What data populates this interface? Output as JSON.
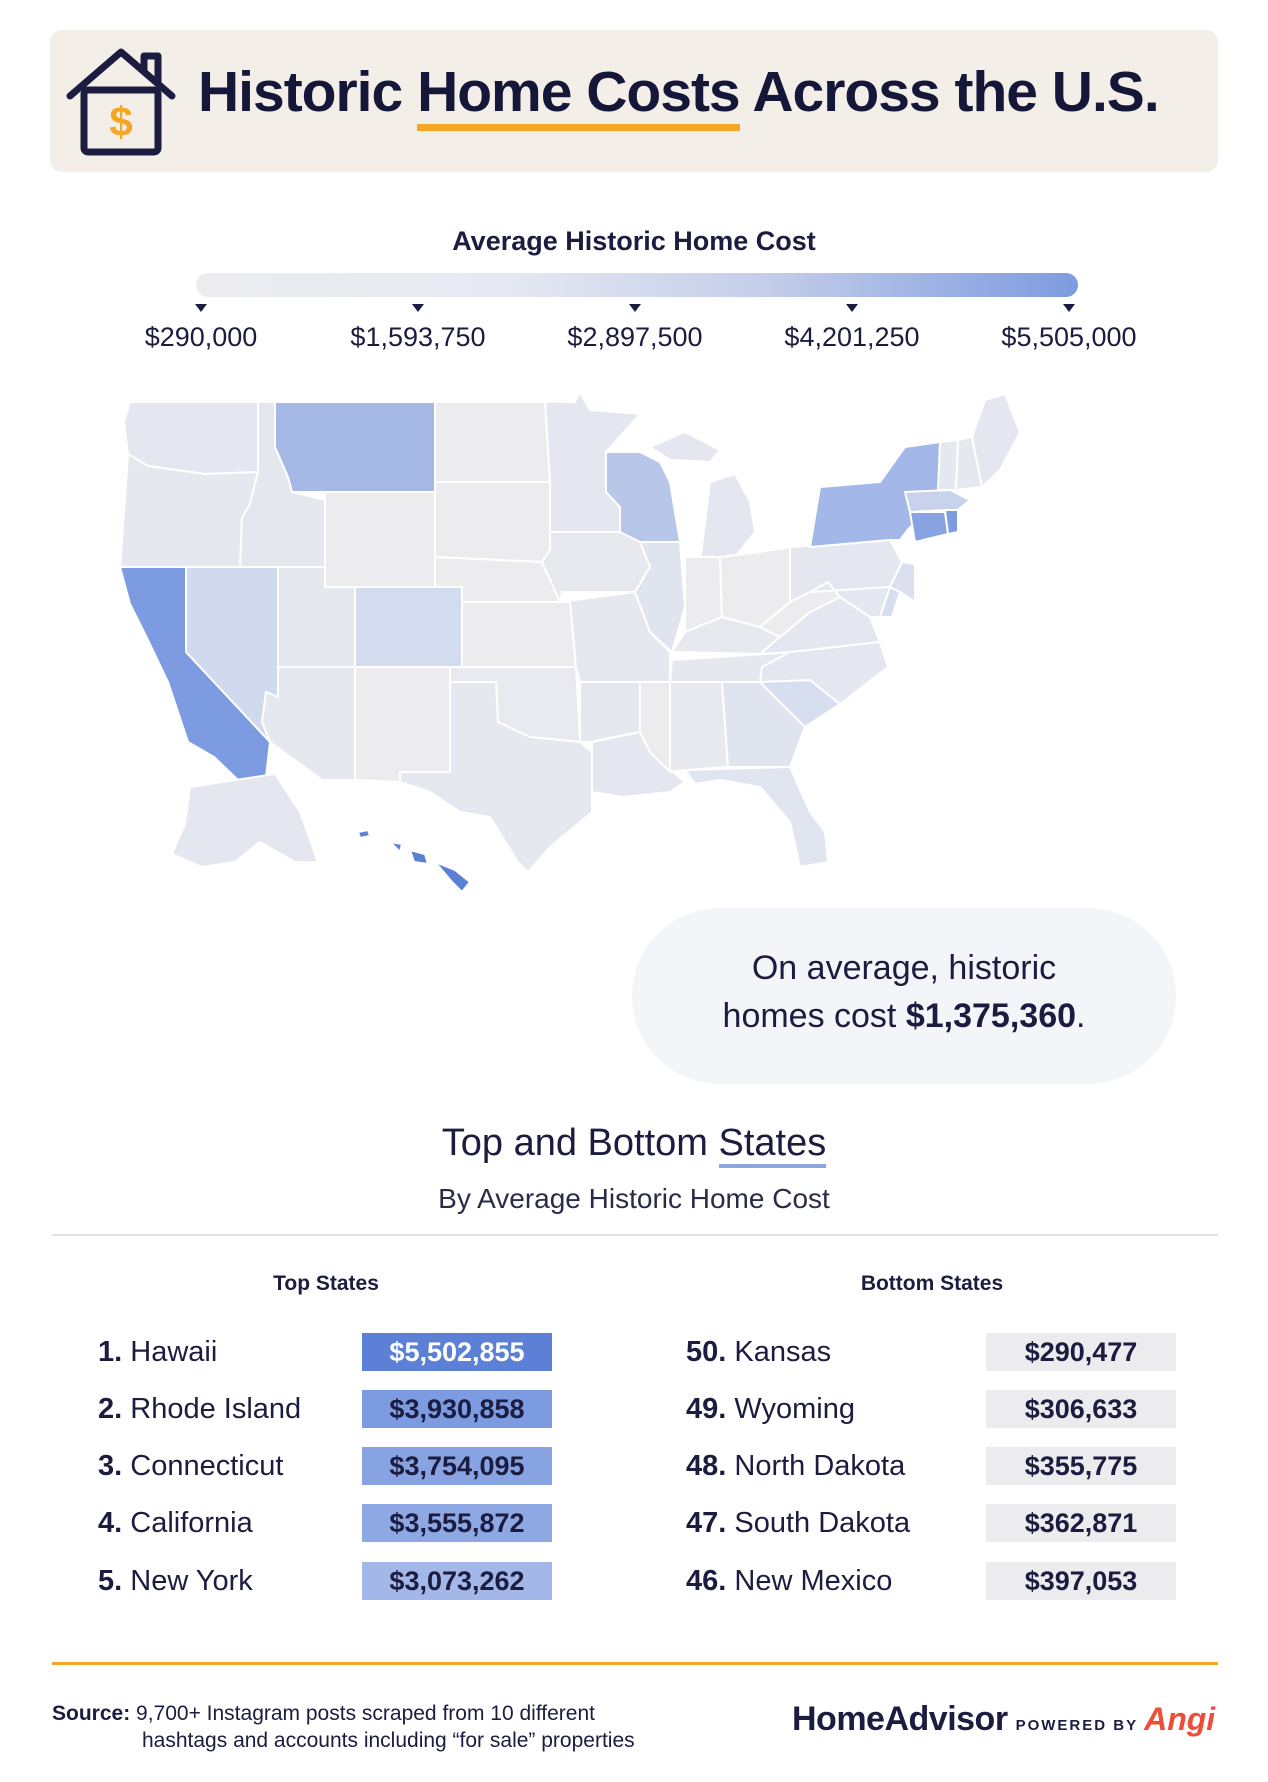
{
  "header": {
    "title_pre": "Historic ",
    "title_highlight": "Home Costs",
    "title_post": " Across the U.S."
  },
  "legend": {
    "title": "Average Historic Home Cost",
    "ticks": [
      "$290,000",
      "$1,593,750",
      "$2,897,500",
      "$4,201,250",
      "$5,505,000"
    ],
    "range": [
      290000,
      5505000
    ]
  },
  "average": {
    "line1": "On average, historic",
    "line2_pre": "homes cost ",
    "value": "$1,375,360",
    "line2_post": "."
  },
  "section": {
    "title_pre": "Top and Bottom ",
    "title_highlight": "States",
    "subtitle": "By Average Historic Home Cost"
  },
  "top_states": {
    "heading": "Top States",
    "rows": [
      {
        "rank": "1.",
        "state": "Hawaii",
        "value": "$5,502,855"
      },
      {
        "rank": "2.",
        "state": "Rhode Island",
        "value": "$3,930,858"
      },
      {
        "rank": "3.",
        "state": "Connecticut",
        "value": "$3,754,095"
      },
      {
        "rank": "4.",
        "state": "California",
        "value": "$3,555,872"
      },
      {
        "rank": "5.",
        "state": "New York",
        "value": "$3,073,262"
      }
    ]
  },
  "bottom_states": {
    "heading": "Bottom States",
    "rows": [
      {
        "rank": "50.",
        "state": "Kansas",
        "value": "$290,477"
      },
      {
        "rank": "49.",
        "state": "Wyoming",
        "value": "$306,633"
      },
      {
        "rank": "48.",
        "state": "North Dakota",
        "value": "$355,775"
      },
      {
        "rank": "47.",
        "state": "South Dakota",
        "value": "$362,871"
      },
      {
        "rank": "46.",
        "state": "New Mexico",
        "value": "$397,053"
      }
    ]
  },
  "colors": {
    "accent": "#f5a623",
    "navy": "#1b1c3f",
    "top1": "#5b80d6",
    "top2": "#7d9be0",
    "top3": "#88a3e2",
    "top4": "#8ea8e3",
    "top5": "#a3b8e8",
    "bottom": "#ececef"
  },
  "footer": {
    "source_label": "Source:",
    "source_line1": " 9,700+ Instagram posts scraped from 10 different",
    "source_line2": "hashtags and accounts including “for sale” properties",
    "brand": "HomeAdvisor",
    "powered": "POWERED BY",
    "partner": "Angi"
  }
}
